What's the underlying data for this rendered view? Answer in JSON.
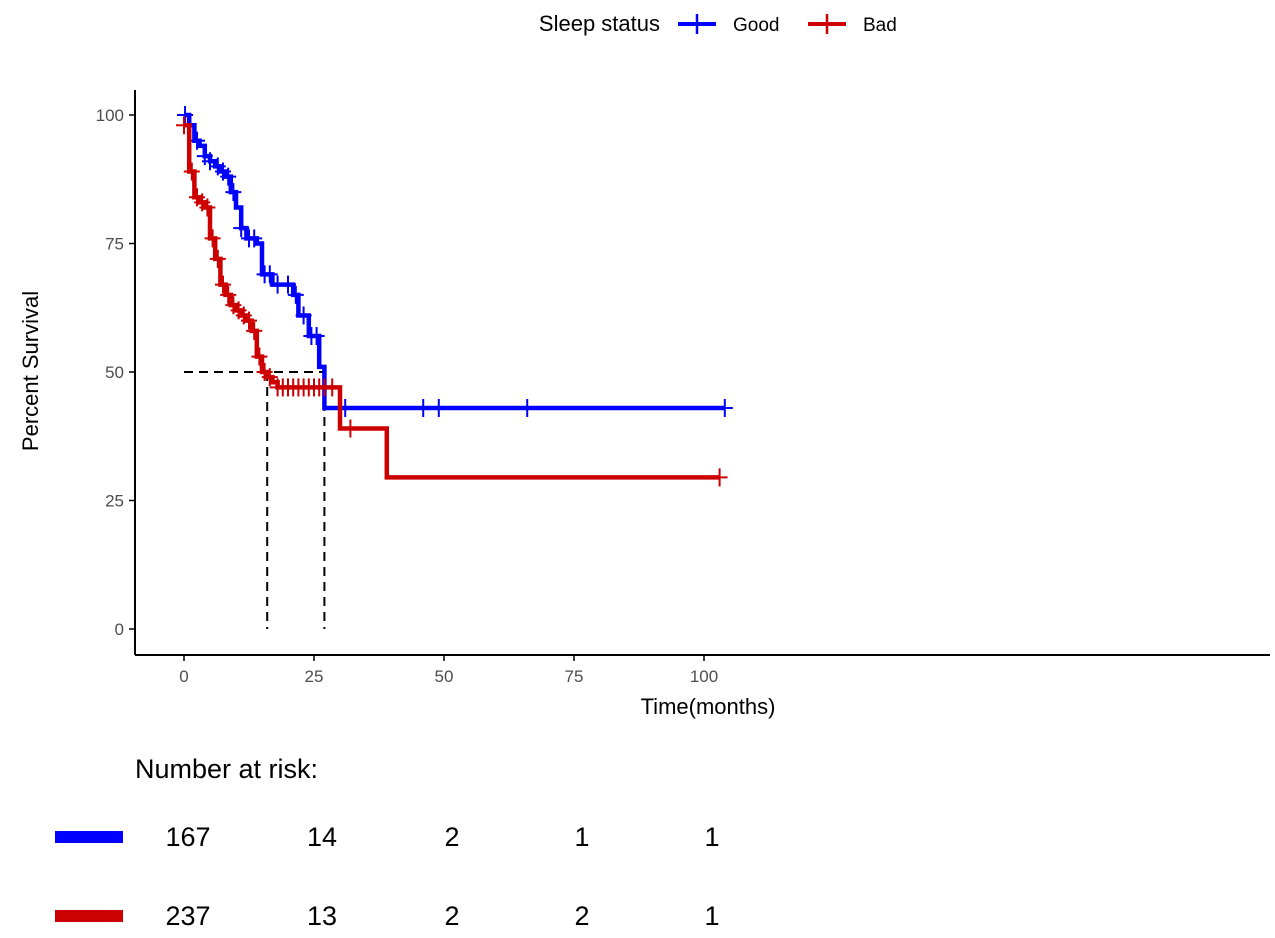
{
  "chart_data": {
    "type": "line",
    "subtype": "kaplan-meier",
    "title": "",
    "xlabel": "Time(months)",
    "ylabel": "Percent Survival",
    "xlim": [
      0,
      105
    ],
    "ylim": [
      0,
      100
    ],
    "xticks": [
      0,
      25,
      50,
      75,
      100
    ],
    "yticks": [
      0,
      25,
      50,
      75,
      100
    ],
    "grid": false,
    "legend": {
      "title": "Sleep status",
      "position": "top",
      "entries": [
        "Good",
        "Bad"
      ]
    },
    "colors": {
      "Good": "#0000ff",
      "Bad": "#cc0000",
      "median": "#000000"
    },
    "series": [
      {
        "name": "Good",
        "steps": [
          [
            0,
            100
          ],
          [
            1,
            98
          ],
          [
            2,
            95
          ],
          [
            3,
            94
          ],
          [
            4,
            92
          ],
          [
            5,
            91
          ],
          [
            6,
            90
          ],
          [
            7,
            89
          ],
          [
            8,
            88
          ],
          [
            9,
            85
          ],
          [
            10,
            82
          ],
          [
            11,
            78
          ],
          [
            12,
            76
          ],
          [
            14,
            75
          ],
          [
            15,
            69
          ],
          [
            17,
            67
          ],
          [
            20,
            67
          ],
          [
            21,
            65
          ],
          [
            22,
            61
          ],
          [
            24,
            57
          ],
          [
            26,
            51
          ],
          [
            27,
            43
          ],
          [
            104,
            43
          ]
        ],
        "censor": [
          0.2,
          2.5,
          4,
          5,
          6.5,
          7.5,
          8.5,
          9.5,
          11,
          12.5,
          13.5,
          15.5,
          16.5,
          18,
          20,
          21.5,
          23,
          24.5,
          25.5,
          31,
          46,
          49,
          66,
          104
        ]
      },
      {
        "name": "Bad",
        "steps": [
          [
            0,
            98
          ],
          [
            1,
            89
          ],
          [
            2,
            84
          ],
          [
            3,
            83
          ],
          [
            4,
            82
          ],
          [
            5,
            76
          ],
          [
            6,
            72
          ],
          [
            7,
            67
          ],
          [
            8,
            65
          ],
          [
            9,
            63
          ],
          [
            10,
            62
          ],
          [
            11,
            61
          ],
          [
            12,
            60
          ],
          [
            13,
            58
          ],
          [
            14,
            53
          ],
          [
            15,
            50
          ],
          [
            16,
            49
          ],
          [
            17,
            48
          ],
          [
            18,
            47
          ],
          [
            30,
            39
          ],
          [
            39,
            29.5
          ],
          [
            103,
            29.5
          ]
        ],
        "censor": [
          0,
          1.5,
          2.5,
          3.5,
          4.5,
          5.5,
          6.5,
          7.5,
          8.5,
          9.5,
          10.5,
          11.5,
          12.5,
          13.5,
          14.5,
          15.5,
          16.5,
          18,
          19,
          20,
          21,
          22,
          23,
          24,
          25,
          26,
          27,
          28.5,
          32,
          103
        ]
      }
    ],
    "median_survival": {
      "level": 50,
      "Bad": 16,
      "Good": 27
    }
  },
  "risk_table": {
    "title": "Number at risk:",
    "times": [
      0,
      25,
      50,
      75,
      100
    ],
    "rows": [
      {
        "name": "Good",
        "values": [
          "167",
          "14",
          "2",
          "1",
          "1"
        ]
      },
      {
        "name": "Bad",
        "values": [
          "237",
          "13",
          "2",
          "2",
          "1"
        ]
      }
    ]
  }
}
